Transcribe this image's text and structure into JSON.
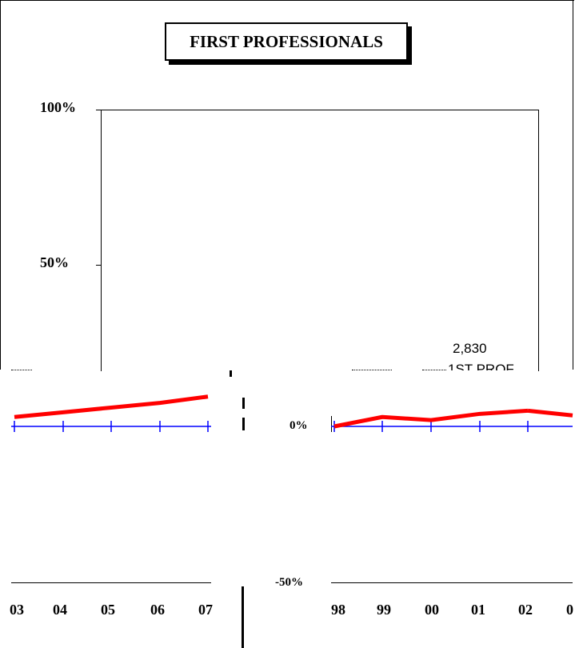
{
  "colors": {
    "series": "#ff0000",
    "axis": "#0000ff",
    "frame": "#000000"
  },
  "header": {
    "title": "FIRST PROFESSIONALS"
  },
  "axis": {
    "y_top_ticks": [
      "100%",
      "50%"
    ],
    "y_bottom_ticks": [
      "0%",
      "-50%"
    ],
    "x_left_ticks": [
      "03",
      "04",
      "05",
      "06",
      "07"
    ],
    "x_right_ticks": [
      "98",
      "99",
      "00",
      "01",
      "02",
      "0"
    ]
  },
  "annotation": {
    "value": "2,830",
    "label": "1ST PROF"
  },
  "chart_data": [
    {
      "type": "line",
      "title": "FIRST PROFESSIONALS",
      "yticks": [
        "100%",
        "50%",
        "0%",
        "-50%"
      ],
      "x": [
        "98",
        "99",
        "00",
        "01",
        "02"
      ],
      "series": [
        {
          "values": [
            0.0,
            0.03,
            0.02,
            0.04,
            0.05
          ]
        }
      ],
      "annotations": [
        {
          "text": "2,830"
        },
        {
          "text": "1ST PROF"
        }
      ]
    },
    {
      "type": "line",
      "x": [
        "03",
        "04",
        "05",
        "06",
        "07"
      ],
      "series": [
        {
          "values": [
            0.03,
            0.045,
            0.06,
            0.075,
            0.095
          ]
        }
      ]
    }
  ]
}
